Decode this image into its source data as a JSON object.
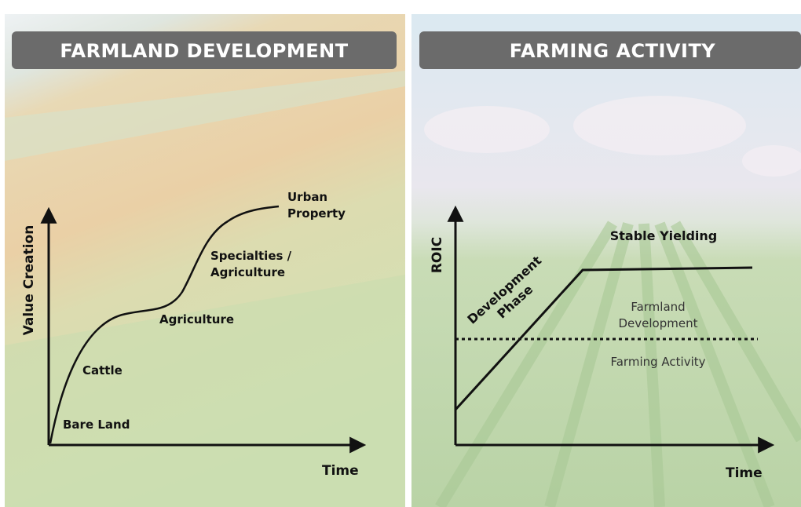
{
  "left": {
    "title": "FARMLAND DEVELOPMENT",
    "y_axis": "Value Creation",
    "x_axis": "Time",
    "stages": [
      [
        "Bare Land"
      ],
      [
        "Cattle"
      ],
      [
        "Agriculture"
      ],
      [
        "Specialties /",
        "Agriculture"
      ],
      [
        "Urban",
        "Property"
      ]
    ]
  },
  "right": {
    "title": "FARMING ACTIVITY",
    "y_axis": "ROIC",
    "x_axis": "Time",
    "phase": [
      "Development",
      "Phase"
    ],
    "plateau": "Stable Yielding",
    "above_line": [
      "Farmland",
      "Development"
    ],
    "below_line": "Farming Activity"
  }
}
